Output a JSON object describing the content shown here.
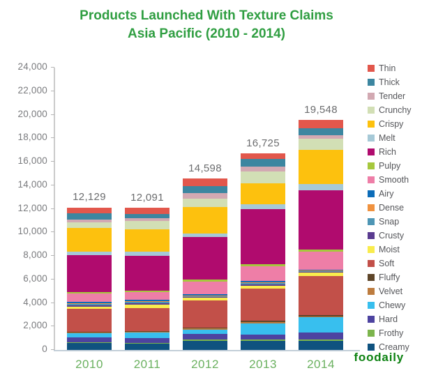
{
  "title": {
    "line1": "Products Launched With Texture Claims",
    "line2": "Asia Pacific (2010 - 2014)"
  },
  "logo_text": "foodaily",
  "colors": {
    "title_green": "#2f9e41",
    "year_green": "#69b05e",
    "logo_green": "#0d8212",
    "axis_text_gray": "#7a7b7e",
    "total_text_gray": "#6b6c6e",
    "legend_text_gray": "#55565a",
    "axis_line": "#cbcbcb",
    "baseline": "#c2ced8"
  },
  "chart_data": {
    "type": "bar",
    "stacked": true,
    "grid": false,
    "legend_position": "right",
    "categories": [
      "2010",
      "2011",
      "2012",
      "2013",
      "2014"
    ],
    "totals": [
      12129,
      12091,
      14598,
      16725,
      19548
    ],
    "total_labels": [
      "12,129",
      "12,091",
      "14,598",
      "16,725",
      "19,548"
    ],
    "ylim": [
      0,
      24000
    ],
    "ytick_step": 2000,
    "ytick_labels": [
      "0",
      "2,000",
      "4,000",
      "6,000",
      "8,000",
      "10,000",
      "12,000",
      "14,000",
      "16,000",
      "18,000",
      "20,000",
      "22,000",
      "24,000"
    ],
    "series": [
      {
        "name": "Thin",
        "color": "#e2574c",
        "values": [
          530,
          530,
          690,
          505,
          690
        ]
      },
      {
        "name": "Thick",
        "color": "#3c86a0",
        "values": [
          490,
          365,
          570,
          610,
          610
        ]
      },
      {
        "name": "Tender",
        "color": "#d2a9b2",
        "values": [
          245,
          200,
          445,
          445,
          285
        ]
      },
      {
        "name": "Crunchy",
        "color": "#d2dfb5",
        "values": [
          490,
          730,
          730,
          975,
          935
        ]
      },
      {
        "name": "Crispy",
        "color": "#fdc10e",
        "values": [
          2030,
          1910,
          2240,
          1790,
          2945
        ]
      },
      {
        "name": "Melt",
        "color": "#a6c9d7",
        "values": [
          285,
          365,
          325,
          395,
          490
        ]
      },
      {
        "name": "Rich",
        "color": "#b00b6e",
        "values": [
          3149,
          2961,
          3598,
          4720,
          5053
        ]
      },
      {
        "name": "Pulpy",
        "color": "#a6c83d",
        "values": [
          120,
          120,
          165,
          165,
          200
        ]
      },
      {
        "name": "Smooth",
        "color": "#ee7ea7",
        "values": [
          695,
          610,
          1100,
          1220,
          1505
        ]
      },
      {
        "name": "Airy",
        "color": "#0c6cb8",
        "values": [
          120,
          120,
          90,
          120,
          80
        ]
      },
      {
        "name": "Dense",
        "color": "#f0923f",
        "values": [
          80,
          80,
          50,
          60,
          45
        ]
      },
      {
        "name": "Snap",
        "color": "#4e96b5",
        "values": [
          120,
          120,
          60,
          140,
          60
        ]
      },
      {
        "name": "Crusty",
        "color": "#5a3b90",
        "values": [
          120,
          120,
          60,
          120,
          60
        ]
      },
      {
        "name": "Moist",
        "color": "#f9ec4d",
        "values": [
          165,
          285,
          245,
          225,
          285
        ]
      },
      {
        "name": "Soft",
        "color": "#c25049",
        "values": [
          1930,
          1950,
          2320,
          2725,
          3340
        ]
      },
      {
        "name": "Fluffy",
        "color": "#5e4529",
        "values": [
          60,
          80,
          80,
          120,
          100
        ]
      },
      {
        "name": "Velvet",
        "color": "#bd7c3f",
        "values": [
          80,
          80,
          80,
          120,
          100
        ]
      },
      {
        "name": "Chewy",
        "color": "#38bfee",
        "values": [
          325,
          445,
          410,
          975,
          1260
        ]
      },
      {
        "name": "Hard",
        "color": "#4d43a0",
        "values": [
          445,
          410,
          445,
          410,
          610
        ]
      },
      {
        "name": "Frothy",
        "color": "#7cb54d",
        "values": [
          80,
          80,
          120,
          90,
          120
        ]
      },
      {
        "name": "Creamy",
        "color": "#0f527f",
        "values": [
          570,
          530,
          775,
          795,
          775
        ]
      }
    ]
  }
}
